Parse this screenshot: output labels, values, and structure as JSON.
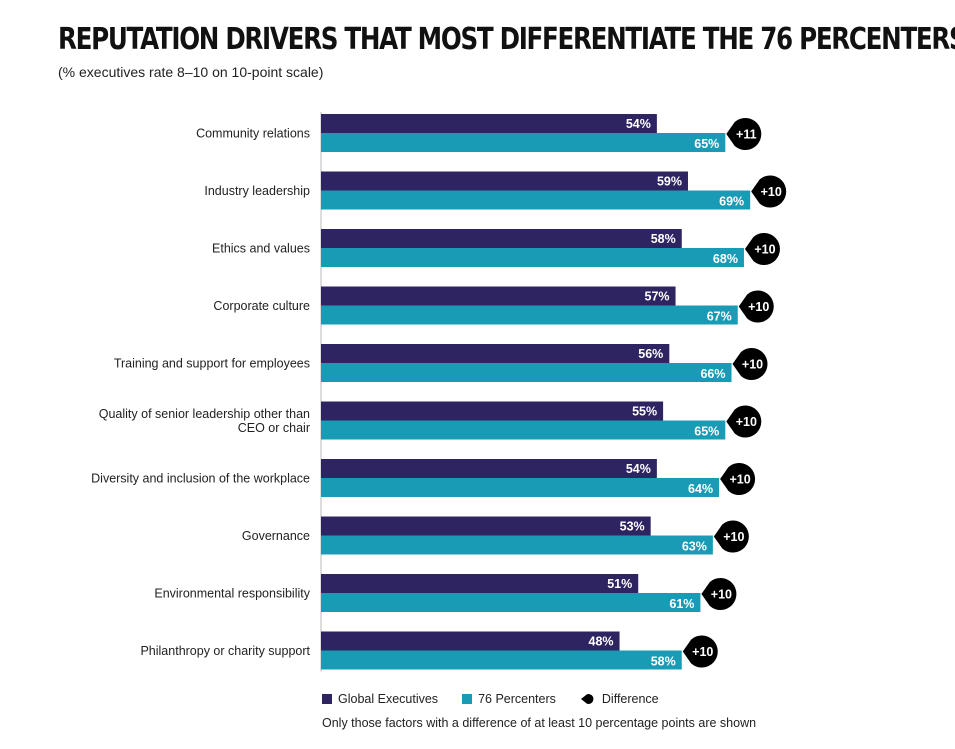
{
  "title": "REPUTATION DRIVERS THAT MOST DIFFERENTIATE THE 76 PERCENTERS",
  "subtitle": "(% executives rate 8–10 on 10-point scale)",
  "colors": {
    "global": "#2e2462",
    "percenters": "#1a9bb5",
    "difference": "#000000"
  },
  "legend": {
    "global_label": "Global Executives",
    "percenters_label": "76 Percenters",
    "difference_label": "Difference"
  },
  "footnote": "Only those factors with a difference of at least 10 percentage points are shown",
  "chart_data": {
    "type": "bar",
    "orientation": "horizontal",
    "title": "REPUTATION DRIVERS THAT MOST DIFFERENTIATE THE 76 PERCENTERS",
    "subtitle": "(% executives rate 8–10 on 10-point scale)",
    "value_unit": "%",
    "categories": [
      [
        "Community relations"
      ],
      [
        "Industry leadership"
      ],
      [
        "Ethics and values"
      ],
      [
        "Corporate culture"
      ],
      [
        "Training and support for employees"
      ],
      [
        "Quality of senior leadership other than",
        "CEO or chair"
      ],
      [
        "Diversity and inclusion of the workplace"
      ],
      [
        "Governance"
      ],
      [
        "Environmental responsibility"
      ],
      [
        "Philanthropy or charity support"
      ]
    ],
    "series": [
      {
        "name": "Global Executives",
        "values": [
          54,
          59,
          58,
          57,
          56,
          55,
          54,
          53,
          51,
          48
        ]
      },
      {
        "name": "76 Percenters",
        "values": [
          65,
          69,
          68,
          67,
          66,
          65,
          64,
          63,
          61,
          58
        ]
      }
    ],
    "differences": [
      "+11",
      "+10",
      "+10",
      "+10",
      "+10",
      "+10",
      "+10",
      "+10",
      "+10",
      "+10"
    ],
    "xlim": [
      0,
      100
    ],
    "grid": false,
    "legend_position": "bottom"
  }
}
